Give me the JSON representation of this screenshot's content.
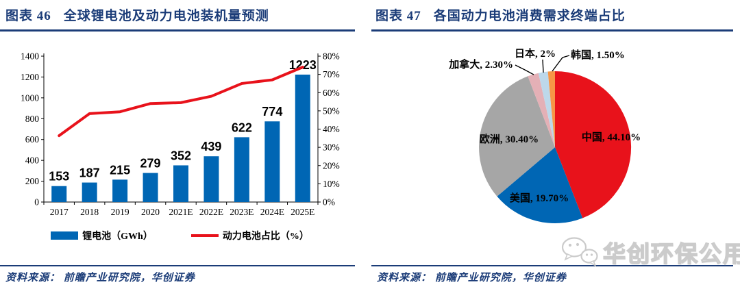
{
  "panels": [
    {
      "fig_label": "图表 46",
      "fig_title": "全球锂电池及动力电池装机量预测",
      "source": "资料来源： 前瞻产业研究院，华创证券"
    },
    {
      "fig_label": "图表 47",
      "fig_title": "各国动力电池消费需求终端占比",
      "source": "资料来源： 前瞻产业研究院，华创证券"
    }
  ],
  "chart_data": [
    {
      "type": "bar",
      "subtype": "bar+line-dual-axis",
      "categories": [
        "2017",
        "2018",
        "2019",
        "2020",
        "2021E",
        "2022E",
        "2023E",
        "2024E",
        "2025E"
      ],
      "series": [
        {
          "name": "锂电池（GWh）",
          "type": "bar",
          "axis": "left",
          "values": [
            153,
            187,
            215,
            279,
            352,
            439,
            622,
            774,
            1223
          ],
          "color": "#0066B4"
        },
        {
          "name": "动力电池占比（%）",
          "type": "line",
          "axis": "right",
          "values": [
            36.4,
            48.5,
            49.5,
            54,
            54.5,
            58,
            65,
            67,
            74
          ],
          "color": "#E8121B"
        }
      ],
      "left_axis": {
        "min": 0,
        "max": 1400,
        "step": 200
      },
      "right_axis": {
        "min": 0,
        "max": 80,
        "step": 10,
        "suffix": "%"
      },
      "grid": false,
      "bar_value_labels": true,
      "legend_position": "bottom"
    },
    {
      "type": "pie",
      "start_angle": "top",
      "direction": "clockwise",
      "slices": [
        {
          "label": "中国",
          "value": 44.1,
          "display": "中国, 44.10%",
          "color": "#E8121B",
          "label_placement": "inside"
        },
        {
          "label": "美国",
          "value": 19.7,
          "display": "美国, 19.70%",
          "color": "#0066B4",
          "label_placement": "inside"
        },
        {
          "label": "欧洲",
          "value": 30.4,
          "display": "欧洲, 30.40%",
          "color": "#A6A6A6",
          "label_placement": "inside"
        },
        {
          "label": "加拿大",
          "value": 2.3,
          "display": "加拿大, 2.30%",
          "color": "#E4B0B6",
          "label_placement": "callout"
        },
        {
          "label": "日本",
          "value": 2.0,
          "display": "日本, 2%",
          "color": "#BDD8EA",
          "label_placement": "callout"
        },
        {
          "label": "韩国",
          "value": 1.5,
          "display": "韩国, 1.50%",
          "color": "#F79646",
          "label_placement": "callout"
        }
      ]
    }
  ],
  "watermark": {
    "icon": "wechat-icon",
    "text": "华创环保公用"
  },
  "colors": {
    "title_navy": "#1B3C78",
    "rule_navy": "#1B3C78",
    "bar_blue": "#0066B4",
    "line_red": "#E8121B",
    "pie_gray": "#A6A6A6",
    "pie_pink": "#E4B0B6",
    "pie_light_blue": "#BDD8EA",
    "pie_orange": "#F79646",
    "axis_black": "#000000",
    "watermark_gray": "#C6C6C6"
  }
}
